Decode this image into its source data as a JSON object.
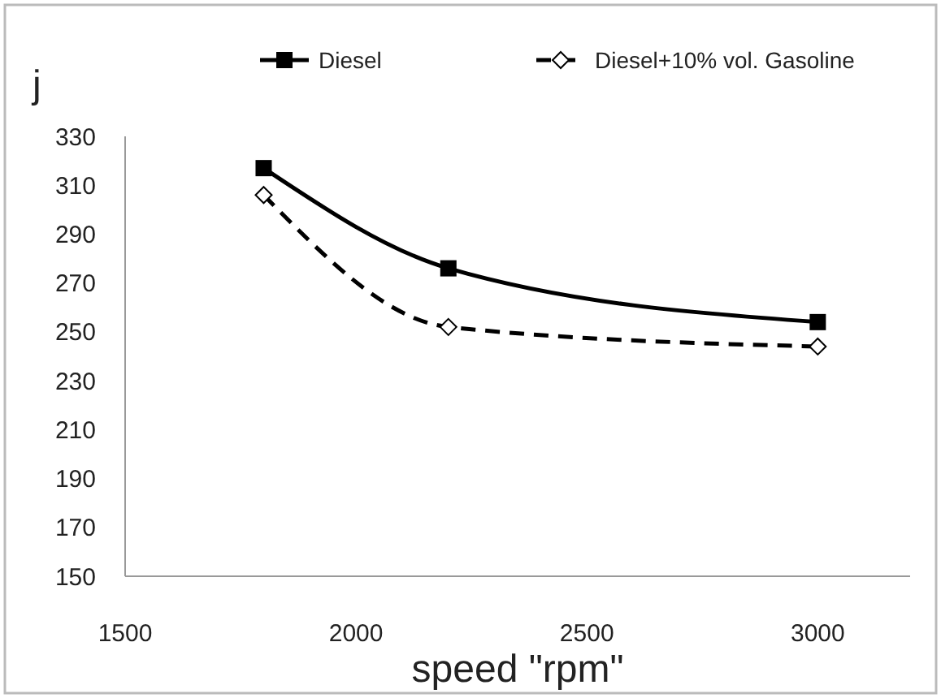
{
  "chart_data": {
    "type": "line",
    "xlabel": "speed \"rpm\"",
    "ylabel": "j",
    "x": [
      1800,
      2200,
      3000
    ],
    "series": [
      {
        "name": "Diesel",
        "color": "#000000",
        "values": [
          317,
          276,
          254
        ],
        "marker": "square",
        "line_style": "solid"
      },
      {
        "name": "Diesel+10% vol. Gasoline",
        "color": "#000000",
        "values": [
          306,
          252,
          244
        ],
        "marker": "diamond",
        "line_style": "dashed"
      }
    ],
    "xlim": [
      1500,
      3200
    ],
    "xticks": [
      1500,
      2000,
      2500,
      3000
    ],
    "ylim": [
      150,
      330
    ],
    "yticks": [
      150,
      170,
      190,
      210,
      230,
      250,
      270,
      290,
      310,
      330
    ],
    "grid": false,
    "legend": "top"
  }
}
